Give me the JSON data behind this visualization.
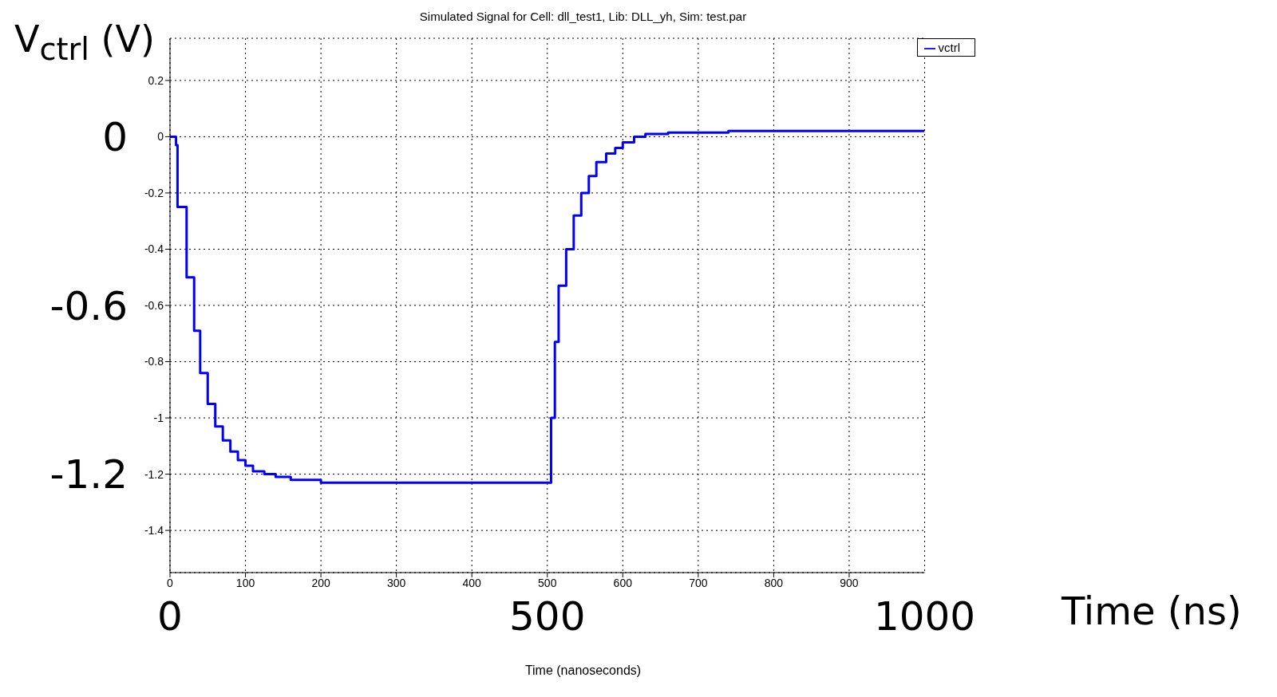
{
  "chart_data": {
    "type": "step",
    "title": "Simulated Signal for Cell: dll_test1, Lib: DLL_yh, Sim: test.par",
    "xlabel": "Time (nanoseconds)",
    "x2label": "Time (ns)",
    "y2label": "V$_{ctrl}$ (V)",
    "xlim": [
      0,
      1000
    ],
    "xticks": [
      0,
      100,
      200,
      300,
      400,
      500,
      600,
      700,
      800,
      900
    ],
    "x2lim": [
      0,
      1000
    ],
    "x2ticks": [
      0,
      500,
      1000
    ],
    "ylim": [
      -1.55,
      0.35
    ],
    "yticks": [
      0.2,
      0,
      -0.2,
      -0.4,
      -0.6,
      -0.8,
      -1,
      -1.2,
      -1.4
    ],
    "y2lim": [
      -1.55,
      0.35
    ],
    "y2ticks": [
      0,
      -0.6,
      -1.2
    ],
    "grid": true,
    "legend": "top right",
    "line_style": "solid",
    "marker": "none",
    "series": [
      {
        "name": "vctrl",
        "color": "#0000ff",
        "x": [
          0,
          8,
          10,
          22,
          32,
          40,
          50,
          60,
          70,
          80,
          90,
          100,
          110,
          125,
          140,
          160,
          200,
          505,
          510,
          515,
          525,
          535,
          545,
          555,
          565,
          578,
          590,
          600,
          615,
          630,
          660,
          700,
          740,
          1000
        ],
        "values": [
          0,
          -0.03,
          -0.25,
          -0.5,
          -0.69,
          -0.84,
          -0.95,
          -1.03,
          -1.08,
          -1.12,
          -1.15,
          -1.17,
          -1.19,
          -1.2,
          -1.21,
          -1.22,
          -1.23,
          -1.0,
          -0.73,
          -0.53,
          -0.4,
          -0.28,
          -0.2,
          -0.14,
          -0.09,
          -0.06,
          -0.04,
          -0.02,
          0,
          0.01,
          0.015,
          0.015,
          0.02,
          0.02
        ]
      }
    ]
  }
}
